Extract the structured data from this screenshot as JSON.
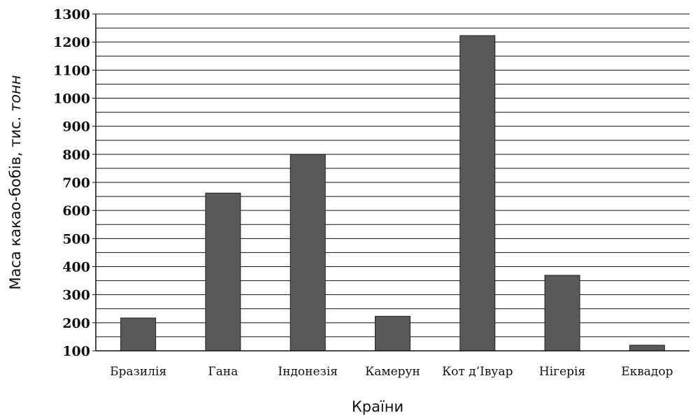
{
  "chart_data": {
    "type": "bar",
    "categories": [
      "Бразилія",
      "Гана",
      "Індонезія",
      "Камерун",
      "Кот д’Івуар",
      "Нігерія",
      "Еквадор"
    ],
    "values": [
      217,
      662,
      800,
      223,
      1223,
      369,
      120
    ],
    "title": "",
    "xlabel": "Країни",
    "ylabel": {
      "main": "Маса какао-бобів, тис. ",
      "unit": "тонн"
    },
    "ylim": [
      100,
      1300
    ],
    "yticks": [
      100,
      200,
      300,
      400,
      500,
      600,
      700,
      800,
      900,
      1000,
      1100,
      1200,
      1300
    ],
    "minor_gridlines": true,
    "grid": true,
    "legend": "none",
    "bar_color": "#595959"
  }
}
